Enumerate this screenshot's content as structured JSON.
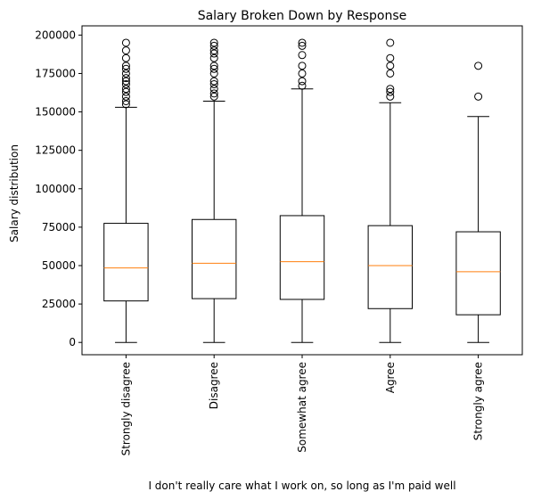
{
  "chart_data": {
    "type": "boxplot",
    "title": "Salary Broken Down by Response",
    "xlabel": "I don't really care what I work on, so long as I'm paid well",
    "ylabel": "Salary distribution",
    "ylim": [
      -8000,
      206000
    ],
    "yticks": [
      0,
      25000,
      50000,
      75000,
      100000,
      125000,
      150000,
      175000,
      200000
    ],
    "ytick_labels": [
      "0",
      "25000",
      "50000",
      "75000",
      "100000",
      "125000",
      "150000",
      "175000",
      "200000"
    ],
    "grid": false,
    "categories": [
      "Strongly disagree",
      "Disagree",
      "Somewhat agree",
      "Agree",
      "Strongly agree"
    ],
    "boxes": [
      {
        "category": "Strongly disagree",
        "whisker_low": 0,
        "q1": 27000,
        "median": 48500,
        "q3": 77500,
        "whisker_high": 153000,
        "outliers": [
          155000,
          157000,
          160000,
          163000,
          165000,
          168000,
          170000,
          172000,
          175000,
          178000,
          180000,
          185000,
          190000,
          195000
        ]
      },
      {
        "category": "Disagree",
        "whisker_low": 0,
        "q1": 28500,
        "median": 51500,
        "q3": 80000,
        "whisker_high": 157000,
        "outliers": [
          160000,
          162000,
          165000,
          168000,
          170000,
          175000,
          178000,
          180000,
          185000,
          188000,
          190000,
          193000,
          195000
        ]
      },
      {
        "category": "Somewhat agree",
        "whisker_low": 0,
        "q1": 28000,
        "median": 52500,
        "q3": 82500,
        "whisker_high": 165000,
        "outliers": [
          167000,
          170000,
          175000,
          180000,
          187000,
          193000,
          195000
        ]
      },
      {
        "category": "Agree",
        "whisker_low": 0,
        "q1": 22000,
        "median": 50000,
        "q3": 76000,
        "whisker_high": 156000,
        "outliers": [
          160000,
          163000,
          165000,
          175000,
          180000,
          185000,
          195000
        ]
      },
      {
        "category": "Strongly agree",
        "whisker_low": 0,
        "q1": 18000,
        "median": 46000,
        "q3": 72000,
        "whisker_high": 147000,
        "outliers": [
          160000,
          180000
        ]
      }
    ],
    "colors": {
      "box": "#000000",
      "median": "#ff7f0e",
      "outlier": "#000000"
    }
  }
}
